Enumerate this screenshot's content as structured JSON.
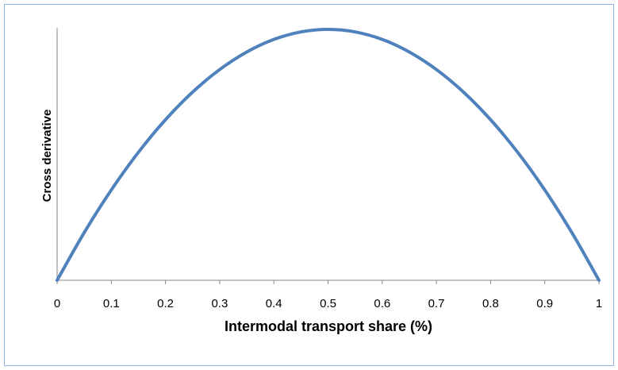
{
  "chart_data": {
    "type": "line",
    "title": "",
    "xlabel": "Intermodal transport share (%)",
    "ylabel": "Cross derivative",
    "xlim": [
      0,
      1
    ],
    "ylim": [
      0,
      0.25
    ],
    "x_ticks": [
      "0",
      "0.1",
      "0.2",
      "0.3",
      "0.4",
      "0.5",
      "0.6",
      "0.7",
      "0.8",
      "0.9",
      "1"
    ],
    "y_ticks_shown": false,
    "grid": false,
    "legend": "none",
    "series": [
      {
        "color": "#4f81bd",
        "x": [
          0,
          0.05,
          0.1,
          0.15,
          0.2,
          0.25,
          0.3,
          0.35,
          0.4,
          0.45,
          0.5,
          0.55,
          0.6,
          0.65,
          0.7,
          0.75,
          0.8,
          0.85,
          0.9,
          0.95,
          1
        ],
        "y": [
          0,
          0.0475,
          0.09,
          0.1275,
          0.16,
          0.1875,
          0.21,
          0.2275,
          0.24,
          0.2475,
          0.25,
          0.2475,
          0.24,
          0.2275,
          0.21,
          0.1875,
          0.16,
          0.1275,
          0.09,
          0.0475,
          0
        ]
      }
    ]
  }
}
